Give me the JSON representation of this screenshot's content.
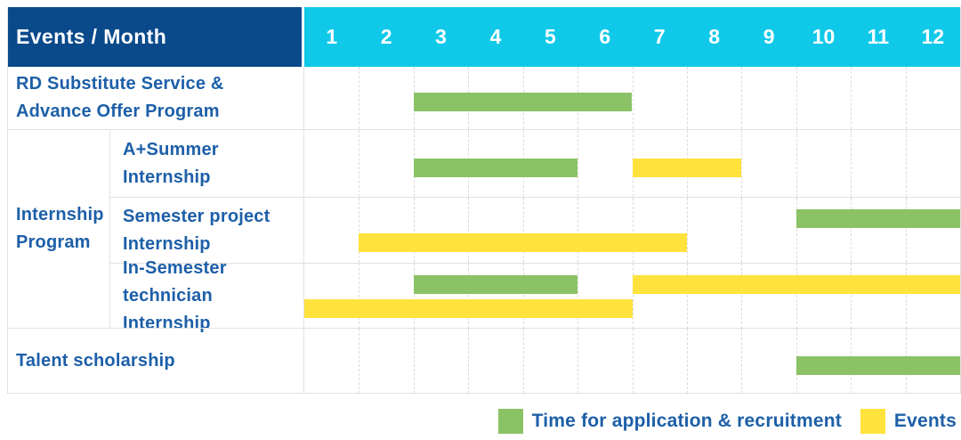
{
  "table": {
    "header": {
      "label": "Events / Month",
      "months": [
        "1",
        "2",
        "3",
        "4",
        "5",
        "6",
        "7",
        "8",
        "9",
        "10",
        "11",
        "12"
      ]
    },
    "rows": {
      "rd_substitute": {
        "line1": "RD Substitute Service &",
        "line2": "Advance Offer Program"
      },
      "internship_group": {
        "line1": "Internship",
        "line2": "Program"
      },
      "a_plus_summer": {
        "line1": "A+Summer",
        "line2": "Internship"
      },
      "semester_project": {
        "line1": "Semester project",
        "line2": "Internship"
      },
      "in_semester_technician": {
        "line1": "In-Semester",
        "line2": "technician Internship"
      },
      "talent_scholarship": {
        "label": "Talent scholarship"
      }
    }
  },
  "legend": {
    "application": {
      "label": "Time for application & recruitment",
      "color": "#8CC266"
    },
    "events": {
      "label": "Events",
      "color": "#FFE23C"
    }
  },
  "colors": {
    "navy": "#0A4A8B",
    "cyan": "#10C9E9",
    "text-blue": "#1D5FA8",
    "green": "#8CC266",
    "yellow": "#FFE23C",
    "grid": "#E2E2E2"
  },
  "chart_data": {
    "type": "bar",
    "subtype": "gantt-timeline",
    "title": "Events / Month",
    "xlabel": "Month",
    "x_ticks": [
      1,
      2,
      3,
      4,
      5,
      6,
      7,
      8,
      9,
      10,
      11,
      12
    ],
    "x_range": [
      1,
      12
    ],
    "grid": true,
    "legend_position": "bottom-right",
    "series_legend": [
      {
        "name": "Time for application & recruitment",
        "color": "#8CC266"
      },
      {
        "name": "Events",
        "color": "#FFE23C"
      }
    ],
    "rows": [
      {
        "label": "RD Substitute Service & Advance Offer Program",
        "group": null,
        "bars": [
          {
            "series": "application",
            "start_month": 3,
            "end_month": 6,
            "lane": "single"
          }
        ]
      },
      {
        "label": "A+Summer Internship",
        "group": "Internship Program",
        "bars": [
          {
            "series": "application",
            "start_month": 3,
            "end_month": 5,
            "lane": "single"
          },
          {
            "series": "events",
            "start_month": 7,
            "end_month": 8,
            "lane": "single"
          }
        ]
      },
      {
        "label": "Semester project Internship",
        "group": "Internship Program",
        "bars": [
          {
            "series": "application",
            "start_month": 10,
            "end_month": 12,
            "lane": "top"
          },
          {
            "series": "events",
            "start_month": 2,
            "end_month": 7,
            "lane": "bottom"
          }
        ]
      },
      {
        "label": "In-Semester technician Internship",
        "group": "Internship Program",
        "bars": [
          {
            "series": "application",
            "start_month": 3,
            "end_month": 5,
            "lane": "top"
          },
          {
            "series": "events",
            "start_month": 7,
            "end_month": 12,
            "lane": "top"
          },
          {
            "series": "events",
            "start_month": 1,
            "end_month": 6,
            "lane": "bottom"
          }
        ]
      },
      {
        "label": "Talent scholarship",
        "group": null,
        "bars": [
          {
            "series": "application",
            "start_month": 10,
            "end_month": 12,
            "lane": "single"
          }
        ]
      }
    ]
  }
}
